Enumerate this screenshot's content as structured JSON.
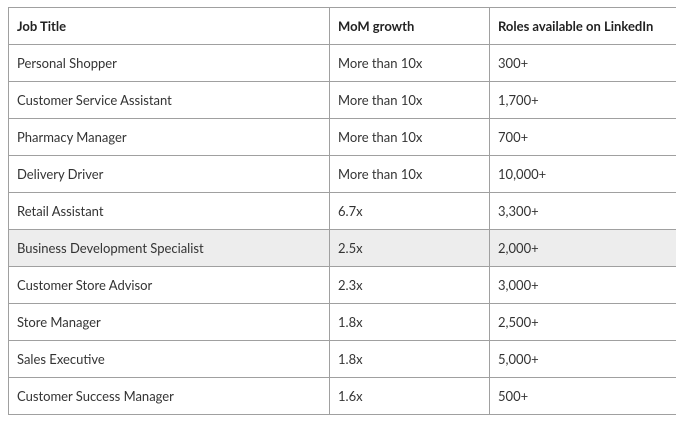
{
  "table": {
    "header": [
      "Job Title",
      "MoM growth",
      "Roles available on LinkedIn"
    ],
    "rows": [
      [
        "Personal Shopper",
        "More than 10x",
        "300+"
      ],
      [
        "Customer Service Assistant",
        "More than 10x",
        "1,700+"
      ],
      [
        "Pharmacy Manager",
        "More than 10x",
        "700+"
      ],
      [
        "Delivery Driver",
        "More than 10x",
        "10,000+"
      ],
      [
        "Retail Assistant",
        "6.7x",
        "3,300+"
      ],
      [
        "Business Development Specialist",
        "2.5x",
        "2,000+"
      ],
      [
        "Customer Store Advisor",
        "2.3x",
        "3,000+"
      ],
      [
        "Store Manager",
        "1.8x",
        "2,500+"
      ],
      [
        "Sales Executive",
        "1.8x",
        "5,000+"
      ],
      [
        "Customer Success Manager",
        "1.6x",
        "500+"
      ]
    ]
  }
}
